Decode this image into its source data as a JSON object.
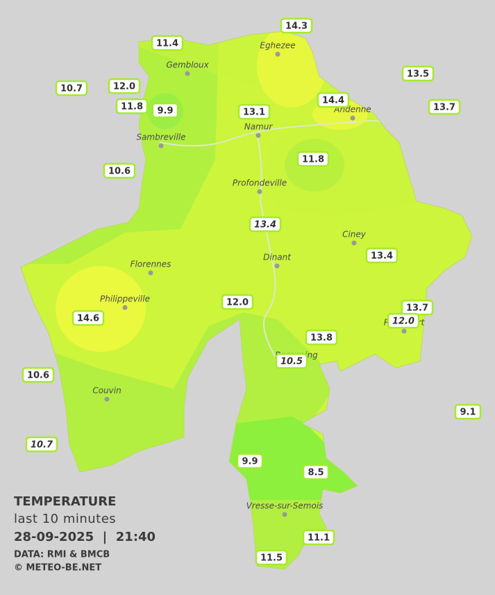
{
  "title": "TEMPERATURE",
  "subtitle": "last 10 minutes",
  "datetime": "28-09-2025  |  21:40",
  "source": "DATA: RMI & BMCB",
  "credit": "© METEO-BE.NET",
  "towns": [
    "Eghezee",
    "Gembloux",
    "Andenne",
    "Namur",
    "Sambreville",
    "Profondeville",
    "Ciney",
    "Dinant",
    "Florennes",
    "Philippeville",
    "Rochefort",
    "Beauraing",
    "Couvin",
    "Vresse-sur-Semois"
  ],
  "stations": [
    {
      "label": "14.3",
      "italic": false
    },
    {
      "label": "11.4",
      "italic": false
    },
    {
      "label": "10.7",
      "italic": false
    },
    {
      "label": "12.0",
      "italic": false
    },
    {
      "label": "11.8",
      "italic": false
    },
    {
      "label": "9.9",
      "italic": false
    },
    {
      "label": "13.5",
      "italic": false
    },
    {
      "label": "14.4",
      "italic": false
    },
    {
      "label": "13.7",
      "italic": false
    },
    {
      "label": "13.1",
      "italic": false
    },
    {
      "label": "11.8",
      "italic": false
    },
    {
      "label": "10.6",
      "italic": false
    },
    {
      "label": "13.4",
      "italic": true
    },
    {
      "label": "13.4",
      "italic": false
    },
    {
      "label": "12.0",
      "italic": false
    },
    {
      "label": "14.6",
      "italic": false
    },
    {
      "label": "13.7",
      "italic": false
    },
    {
      "label": "12.0",
      "italic": true
    },
    {
      "label": "13.8",
      "italic": false
    },
    {
      "label": "10.5",
      "italic": true
    },
    {
      "label": "10.6",
      "italic": false
    },
    {
      "label": "9.1",
      "italic": false
    },
    {
      "label": "10.7",
      "italic": true
    },
    {
      "label": "9.9",
      "italic": false
    },
    {
      "label": "8.5",
      "italic": false
    },
    {
      "label": "11.1",
      "italic": false
    },
    {
      "label": "11.5",
      "italic": false
    }
  ]
}
